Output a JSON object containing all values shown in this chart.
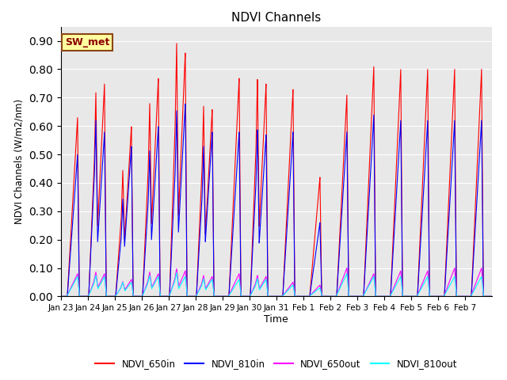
{
  "title": "NDVI Channels",
  "xlabel": "Time",
  "ylabel": "NDVI Channels (W/m2/nm)",
  "ylim": [
    0.0,
    0.95
  ],
  "yticks": [
    0.0,
    0.1,
    0.2,
    0.3,
    0.4,
    0.5,
    0.6,
    0.7,
    0.8,
    0.9
  ],
  "xtick_labels": [
    "Jan 23",
    "Jan 24",
    "Jan 25",
    "Jan 26",
    "Jan 27",
    "Jan 28",
    "Jan 29",
    "Jan 30",
    "Jan 31",
    "Feb 1",
    "Feb 2",
    "Feb 3",
    "Feb 4",
    "Feb 5",
    "Feb 6",
    "Feb 7"
  ],
  "annotation_text": "SW_met",
  "annotation_bbox": {
    "facecolor": "#FFFFA0",
    "edgecolor": "#8B4513",
    "boxstyle": "square,pad=0.3"
  },
  "annotation_fontsize": 9,
  "annotation_fontcolor": "#8B0000",
  "legend_colors": [
    "red",
    "blue",
    "magenta",
    "cyan"
  ],
  "legend_labels": [
    "NDVI_650in",
    "NDVI_810in",
    "NDVI_650out",
    "NDVI_810out"
  ],
  "line_colors": {
    "NDVI_650in": "red",
    "NDVI_810in": "blue",
    "NDVI_650out": "magenta",
    "NDVI_810out": "cyan"
  },
  "background_color": "#e8e8e8",
  "grid_color": "white",
  "days": 16,
  "peak_650in": [
    0.63,
    0.75,
    0.6,
    0.77,
    0.86,
    0.66,
    0.77,
    0.75,
    0.73,
    0.42,
    0.71,
    0.81,
    0.8,
    0.8,
    0.8,
    0.8
  ],
  "peak_810in": [
    0.5,
    0.58,
    0.53,
    0.6,
    0.68,
    0.58,
    0.58,
    0.57,
    0.58,
    0.26,
    0.58,
    0.64,
    0.62,
    0.62,
    0.62,
    0.62
  ],
  "peak_650out": [
    0.08,
    0.08,
    0.06,
    0.08,
    0.09,
    0.07,
    0.08,
    0.07,
    0.05,
    0.04,
    0.1,
    0.08,
    0.09,
    0.09,
    0.1,
    0.1
  ],
  "peak_810out": [
    0.07,
    0.07,
    0.05,
    0.07,
    0.07,
    0.06,
    0.06,
    0.06,
    0.04,
    0.03,
    0.08,
    0.07,
    0.07,
    0.07,
    0.07,
    0.07
  ],
  "secondary_650in": [
    0.0,
    0.6,
    0.35,
    0.56,
    0.76,
    0.57,
    0.0,
    0.65,
    0.0,
    0.0,
    0.0,
    0.0,
    0.0,
    0.0,
    0.0,
    0.0
  ],
  "secondary_810in": [
    0.0,
    0.53,
    0.26,
    0.42,
    0.55,
    0.44,
    0.0,
    0.5,
    0.0,
    0.0,
    0.0,
    0.0,
    0.0,
    0.0,
    0.0,
    0.0
  ],
  "secondary_650out": [
    0.0,
    0.07,
    0.04,
    0.07,
    0.08,
    0.06,
    0.0,
    0.06,
    0.0,
    0.0,
    0.0,
    0.0,
    0.0,
    0.0,
    0.0,
    0.0
  ],
  "secondary_810out": [
    0.0,
    0.06,
    0.04,
    0.06,
    0.07,
    0.05,
    0.0,
    0.05,
    0.0,
    0.0,
    0.0,
    0.0,
    0.0,
    0.0,
    0.0,
    0.0
  ]
}
